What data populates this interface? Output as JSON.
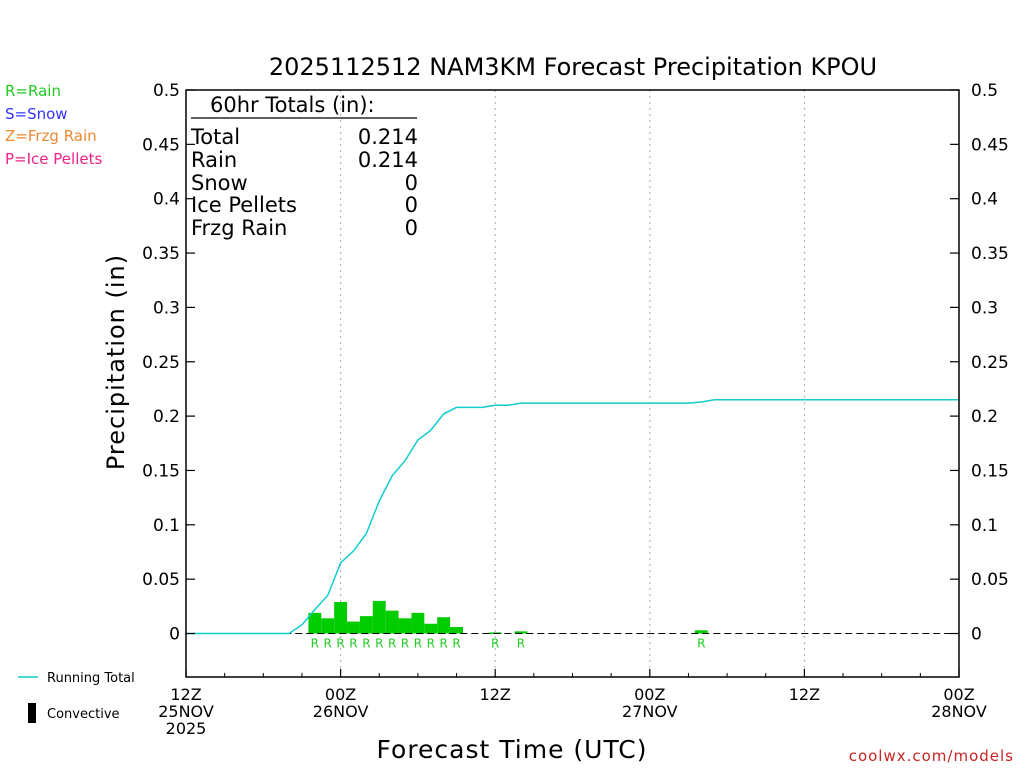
{
  "chart_data": {
    "type": "bar",
    "title": "2025112512 NAM3KM Forecast Precipitation KPOU",
    "xlabel": "Forecast Time (UTC)",
    "ylabel": "Precipitation (in)",
    "ylim": [
      -0.04,
      0.5
    ],
    "yticks": [
      0,
      0.05,
      0.1,
      0.15,
      0.2,
      0.25,
      0.3,
      0.35,
      0.4,
      0.45,
      0.5
    ],
    "ytick_labels": [
      "0",
      "0.05",
      "0.1",
      "0.15",
      "0.2",
      "0.25",
      "0.3",
      "0.35",
      "0.4",
      "0.45",
      "0.5"
    ],
    "xlim_hours": [
      0,
      60
    ],
    "xticks": [
      {
        "hour": 0,
        "lines": [
          "12Z",
          "25NOV",
          "2025"
        ]
      },
      {
        "hour": 12,
        "lines": [
          "00Z",
          "26NOV"
        ]
      },
      {
        "hour": 24,
        "lines": [
          "12Z"
        ]
      },
      {
        "hour": 36,
        "lines": [
          "00Z",
          "27NOV"
        ]
      },
      {
        "hour": 48,
        "lines": [
          "12Z"
        ]
      },
      {
        "hour": 60,
        "lines": [
          "00Z",
          "28NOV"
        ]
      }
    ],
    "legend": [
      {
        "label": "R=Rain",
        "color": "#22cc22"
      },
      {
        "label": "S=Snow",
        "color": "#3333ff"
      },
      {
        "label": "Z=Frzg Rain",
        "color": "#ee8833"
      },
      {
        "label": "P=Ice Pellets",
        "color": "#ee2288"
      }
    ],
    "line_legend": {
      "label": "Running Total",
      "color": "#11cccc"
    },
    "conv_legend": {
      "label": "Convective",
      "color": "#000000"
    },
    "totals_title": "60hr Totals (in):",
    "totals": [
      {
        "label": "Total",
        "value": "0.214"
      },
      {
        "label": "Rain",
        "value": "0.214"
      },
      {
        "label": "Snow",
        "value": "0"
      },
      {
        "label": "Ice Pellets",
        "value": "0"
      },
      {
        "label": "Frzg Rain",
        "value": "0"
      }
    ],
    "bar_color": "#00cc00",
    "bars": [
      {
        "hour": 10,
        "value": 0.019,
        "type": "R"
      },
      {
        "hour": 11,
        "value": 0.014,
        "type": "R"
      },
      {
        "hour": 12,
        "value": 0.029,
        "type": "R"
      },
      {
        "hour": 13,
        "value": 0.011,
        "type": "R"
      },
      {
        "hour": 14,
        "value": 0.016,
        "type": "R"
      },
      {
        "hour": 15,
        "value": 0.03,
        "type": "R"
      },
      {
        "hour": 16,
        "value": 0.021,
        "type": "R"
      },
      {
        "hour": 17,
        "value": 0.014,
        "type": "R"
      },
      {
        "hour": 18,
        "value": 0.019,
        "type": "R"
      },
      {
        "hour": 19,
        "value": 0.009,
        "type": "R"
      },
      {
        "hour": 20,
        "value": 0.015,
        "type": "R"
      },
      {
        "hour": 21,
        "value": 0.006,
        "type": "R"
      },
      {
        "hour": 24,
        "value": 0.001,
        "type": "R"
      },
      {
        "hour": 26,
        "value": 0.002,
        "type": "R"
      },
      {
        "hour": 40,
        "value": 0.003,
        "type": "R"
      }
    ],
    "series": [
      {
        "name": "Running Total",
        "color": "#11cccc",
        "x": [
          0,
          8,
          9,
          10,
          11,
          12,
          13,
          14,
          15,
          16,
          17,
          18,
          19,
          20,
          21,
          22,
          23,
          24,
          25,
          26,
          27,
          39,
          40,
          41,
          60
        ],
        "values": [
          0,
          0,
          0.008,
          0.022,
          0.035,
          0.065,
          0.076,
          0.092,
          0.122,
          0.145,
          0.159,
          0.178,
          0.187,
          0.202,
          0.208,
          0.208,
          0.208,
          0.21,
          0.21,
          0.212,
          0.212,
          0.212,
          0.213,
          0.215,
          0.215
        ]
      }
    ]
  },
  "credit": "coolwx.com/models"
}
